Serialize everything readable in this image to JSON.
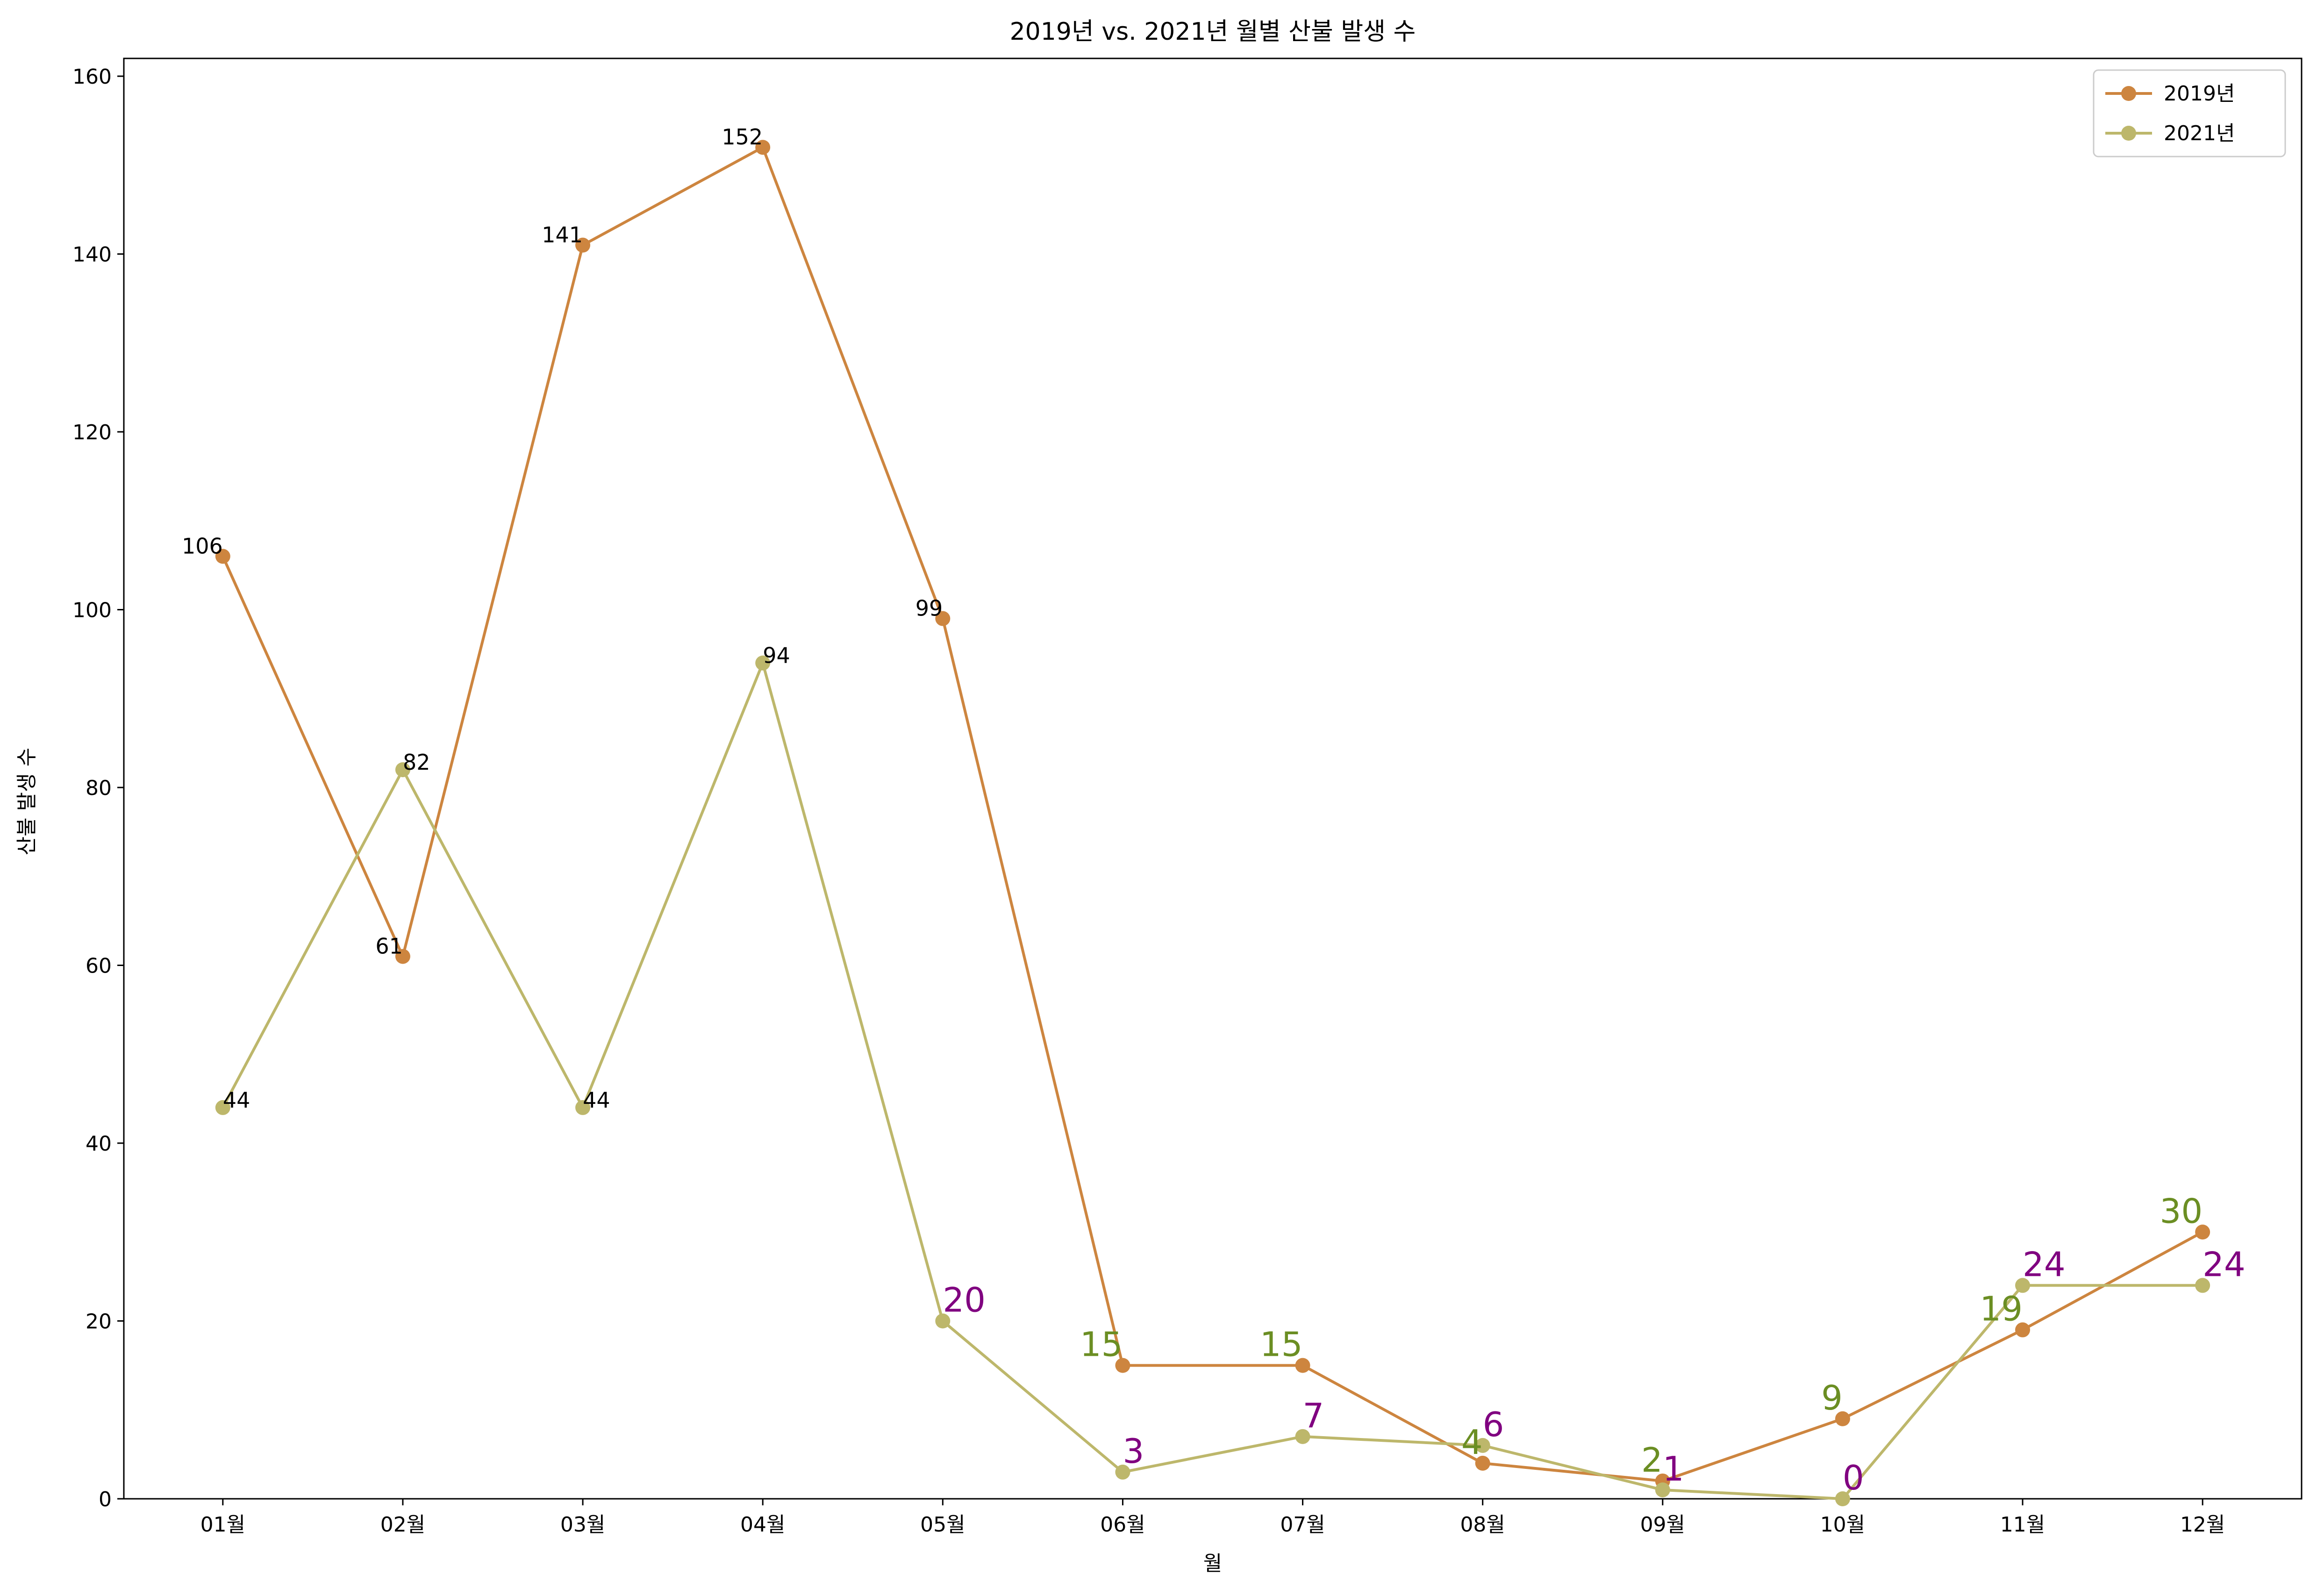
{
  "chart_data": {
    "type": "line",
    "title": "2019년 vs. 2021년 월별 산불 발생 수",
    "xlabel": "월",
    "ylabel": "산불 발생 수",
    "categories": [
      "01월",
      "02월",
      "03월",
      "04월",
      "05월",
      "06월",
      "07월",
      "08월",
      "09월",
      "10월",
      "11월",
      "12월"
    ],
    "ylim": [
      0,
      162
    ],
    "yticks": [
      0,
      20,
      40,
      60,
      80,
      100,
      120,
      140,
      160
    ],
    "grid": false,
    "legend_position": "top-right",
    "series": [
      {
        "name": "2019년",
        "color": "#cd853f",
        "values": [
          106,
          61,
          141,
          152,
          99,
          15,
          15,
          4,
          2,
          9,
          19,
          30
        ],
        "labels": [
          "106",
          "61",
          "141",
          "152",
          "99",
          "15",
          "15",
          "4",
          "2",
          "9",
          "19",
          "30"
        ]
      },
      {
        "name": "2021년",
        "color": "#bdb76b",
        "values": [
          44,
          82,
          44,
          94,
          20,
          3,
          7,
          6,
          1,
          0,
          24,
          24
        ],
        "labels": [
          "44",
          "82",
          "44",
          "94",
          "20",
          "3",
          "7",
          "6",
          "1",
          "0",
          "24",
          "24"
        ]
      }
    ],
    "label_colors": {
      "high": "#000000",
      "low_2019": "#6b8e23",
      "low_2021": "#800080"
    }
  }
}
